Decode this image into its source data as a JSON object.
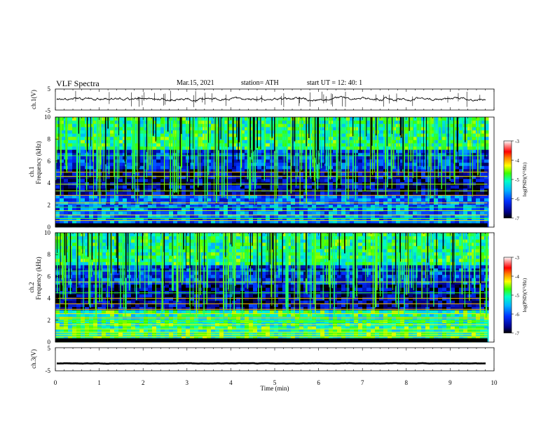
{
  "header": {
    "title": "VLF  Spectra",
    "date": "Mar.15, 2021",
    "station": "station= ATH",
    "start": "start  UT  =   12: 40: 1"
  },
  "chart_data": [
    {
      "type": "line",
      "panel": "ch1-waveform",
      "ylabel": "ch.1(V)",
      "ylim": [
        -5,
        5
      ],
      "yticks": [
        "5",
        "-5"
      ],
      "xlim": [
        0,
        10
      ],
      "trace_level_v": 0.3,
      "color": "#000000"
    },
    {
      "type": "heatmap",
      "panel": "ch1-spectrogram",
      "ylabel_top": "ch.1",
      "ylabel": "Frequency  (kHz)",
      "ylim": [
        0,
        10
      ],
      "yticks": [
        "0",
        "2",
        "4",
        "6",
        "8",
        "10"
      ],
      "xlim": [
        0,
        10
      ],
      "data_end_min": 9.85,
      "colorbar": {
        "label": "log(PSD)(V²/Hz)",
        "range": [
          -7,
          -3
        ],
        "ticks": [
          "-3",
          "-4",
          "-5",
          "-6",
          "-7"
        ]
      }
    },
    {
      "type": "heatmap",
      "panel": "ch2-spectrogram",
      "ylabel_top": "ch.2",
      "ylabel": "Frequency  (kHz)",
      "ylim": [
        0,
        10
      ],
      "yticks": [
        "0",
        "2",
        "4",
        "6",
        "8",
        "10"
      ],
      "xlim": [
        0,
        10
      ],
      "data_end_min": 9.85,
      "colorbar": {
        "label": "log(PSD)(V²/Hz)",
        "range": [
          -7,
          -3
        ],
        "ticks": [
          "-3",
          "-4",
          "-5",
          "-6",
          "-7"
        ]
      }
    },
    {
      "type": "line",
      "panel": "ch3-waveform",
      "ylabel": "ch.3(V)",
      "ylim": [
        -5,
        5
      ],
      "yticks": [
        "5",
        "-5"
      ],
      "xlim": [
        0,
        10
      ],
      "xlabel": "Time  (min)",
      "xticks": [
        "0",
        "1",
        "2",
        "3",
        "4",
        "5",
        "6",
        "7",
        "8",
        "9",
        "10"
      ],
      "trace_level_v": -1.8,
      "color": "#000000"
    }
  ]
}
